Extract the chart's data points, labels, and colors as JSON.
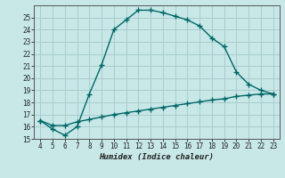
{
  "xlabel": "Humidex (Indice chaleur)",
  "bg_color": "#c8e8e8",
  "grid_color": "#a8cccc",
  "line_color": "#006666",
  "upper_x": [
    4,
    5,
    6,
    7,
    8,
    9,
    10,
    11,
    12,
    13,
    14,
    15,
    16,
    17,
    18,
    19,
    20,
    21,
    22,
    23
  ],
  "upper_y": [
    16.5,
    15.8,
    15.3,
    16.0,
    18.7,
    21.1,
    24.0,
    24.8,
    25.6,
    25.6,
    25.4,
    25.1,
    24.8,
    24.3,
    23.3,
    22.6,
    20.5,
    19.5,
    19.0,
    18.7
  ],
  "lower_x": [
    4,
    5,
    6,
    7,
    8,
    9,
    10,
    11,
    12,
    13,
    14,
    15,
    16,
    17,
    18,
    19,
    20,
    21,
    22,
    23
  ],
  "lower_y": [
    16.5,
    16.1,
    16.1,
    16.4,
    16.6,
    16.8,
    17.0,
    17.15,
    17.3,
    17.45,
    17.6,
    17.75,
    17.9,
    18.05,
    18.2,
    18.3,
    18.5,
    18.6,
    18.7,
    18.7
  ],
  "xlim": [
    3.5,
    23.5
  ],
  "ylim": [
    15,
    26
  ],
  "xticks": [
    4,
    5,
    6,
    7,
    8,
    9,
    10,
    11,
    12,
    13,
    14,
    15,
    16,
    17,
    18,
    19,
    20,
    21,
    22,
    23
  ],
  "yticks": [
    15,
    16,
    17,
    18,
    19,
    20,
    21,
    22,
    23,
    24,
    25
  ]
}
